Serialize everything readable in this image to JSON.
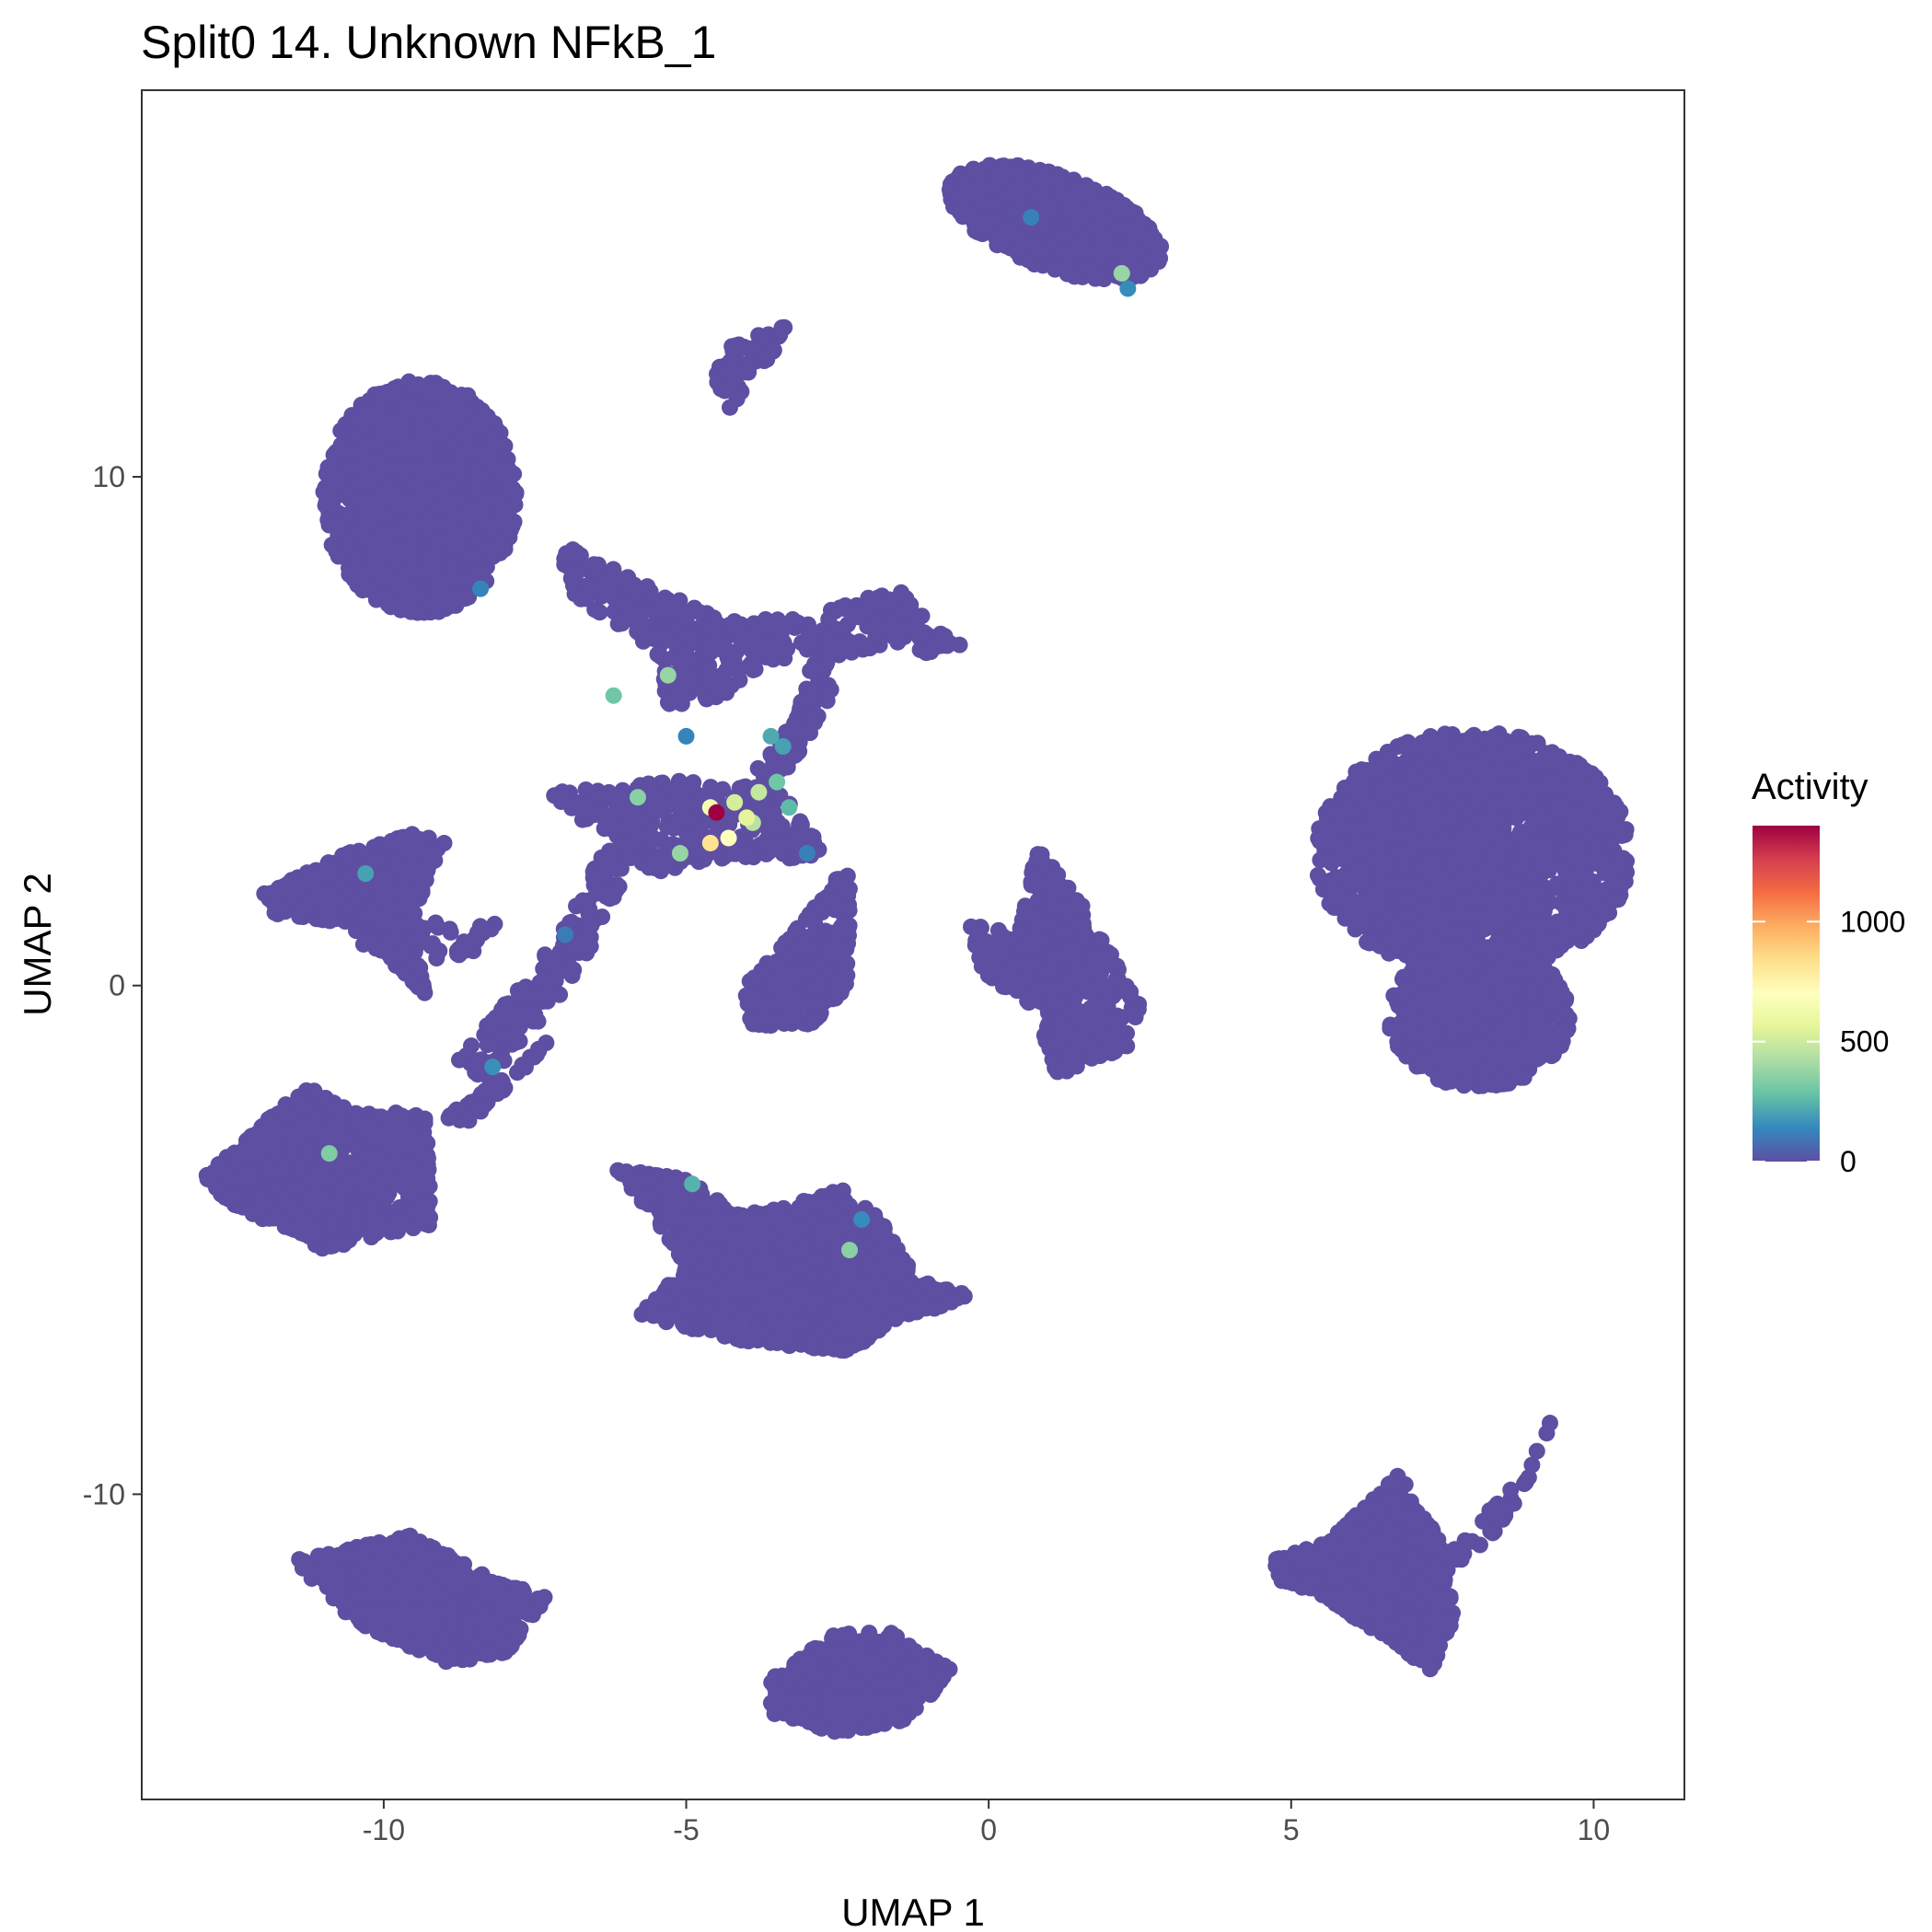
{
  "chart_data": {
    "type": "scatter",
    "title": "Split0 14. Unknown NFkB_1",
    "xlabel": "UMAP 1",
    "ylabel": "UMAP 2",
    "xlim": [
      -14,
      11.5
    ],
    "ylim": [
      -16,
      17.6
    ],
    "x_ticks": [
      -10,
      -5,
      0,
      5,
      10
    ],
    "x_tick_labels": [
      "-10",
      "-5",
      "0",
      "5",
      "10"
    ],
    "y_ticks": [
      -10,
      0,
      10
    ],
    "y_tick_labels": [
      "-10",
      "0",
      "10"
    ],
    "grid": false,
    "legend": {
      "title": "Activity",
      "position": "right",
      "min": 0,
      "max": 1400,
      "ticks": [
        0,
        500,
        1000
      ],
      "tick_labels": [
        "0",
        "500",
        "1000"
      ],
      "palette": [
        "#5E4FA2",
        "#3288BD",
        "#66C2A5",
        "#ABDDA4",
        "#E6F598",
        "#FFFFBF",
        "#FEE08B",
        "#FDAE61",
        "#F46D43",
        "#D53E4F",
        "#9E0142"
      ]
    },
    "point_color": "#5E4FA2",
    "clusters": [
      {
        "shape": "ellipse",
        "cx": -9.4,
        "cy": 9.6,
        "rx": 1.6,
        "ry": 2.3,
        "angle": 0,
        "n": 1200
      },
      {
        "shape": "ellipse",
        "cx": 1.1,
        "cy": 15.0,
        "rx": 1.9,
        "ry": 0.9,
        "angle": -25,
        "n": 700
      },
      {
        "shape": "poly",
        "pts": [
          [
            -4.7,
            12.4
          ],
          [
            -3.2,
            13.1
          ],
          [
            -3.8,
            12.0
          ],
          [
            -4.3,
            11.3
          ]
        ],
        "n": 60
      },
      {
        "shape": "poly",
        "pts": [
          [
            -12.0,
            1.8
          ],
          [
            -10.6,
            2.6
          ],
          [
            -9.5,
            3.0
          ],
          [
            -9.0,
            2.8
          ],
          [
            -9.6,
            1.2
          ],
          [
            -9.3,
            -0.2
          ],
          [
            -10.5,
            1.2
          ],
          [
            -11.8,
            1.4
          ]
        ],
        "n": 500
      },
      {
        "shape": "poly",
        "pts": [
          [
            -13.0,
            -3.8
          ],
          [
            -11.6,
            -2.3
          ],
          [
            -11.2,
            -2.0
          ],
          [
            -10.5,
            -2.5
          ],
          [
            -9.3,
            -2.5
          ],
          [
            -9.2,
            -4.7
          ],
          [
            -11.0,
            -5.2
          ],
          [
            -12.5,
            -4.3
          ]
        ],
        "n": 800
      },
      {
        "shape": "poly",
        "pts": [
          [
            -11.5,
            -11.3
          ],
          [
            -9.5,
            -10.8
          ],
          [
            -8.5,
            -11.5
          ],
          [
            -7.3,
            -12.0
          ],
          [
            -8.0,
            -13.2
          ],
          [
            -9.0,
            -13.3
          ],
          [
            -10.5,
            -12.5
          ]
        ],
        "n": 700
      },
      {
        "shape": "poly",
        "pts": [
          [
            -6.2,
            -3.6
          ],
          [
            -5.0,
            -3.8
          ],
          [
            -4.0,
            -4.5
          ],
          [
            -3.0,
            -4.2
          ],
          [
            -2.4,
            -4.0
          ],
          [
            -1.8,
            -4.5
          ],
          [
            -1.2,
            -5.8
          ],
          [
            -0.2,
            -6.1
          ],
          [
            -1.6,
            -6.6
          ],
          [
            -2.3,
            -7.2
          ],
          [
            -4.0,
            -7.0
          ],
          [
            -5.8,
            -6.5
          ],
          [
            -5.0,
            -5.5
          ],
          [
            -5.6,
            -4.5
          ]
        ],
        "n": 1400
      },
      {
        "shape": "poly",
        "pts": [
          [
            -3.6,
            -13.6
          ],
          [
            -2.5,
            -12.7
          ],
          [
            -1.6,
            -12.7
          ],
          [
            -0.6,
            -13.4
          ],
          [
            -1.2,
            -14.4
          ],
          [
            -2.5,
            -14.7
          ],
          [
            -3.6,
            -14.3
          ]
        ],
        "n": 500
      },
      {
        "shape": "poly",
        "pts": [
          [
            -4.1,
            -0.1
          ],
          [
            -3.3,
            1.0
          ],
          [
            -2.6,
            2.0
          ],
          [
            -2.3,
            2.5
          ],
          [
            -2.3,
            0.0
          ],
          [
            -2.9,
            -0.8
          ],
          [
            -3.9,
            -0.8
          ]
        ],
        "n": 280
      },
      {
        "shape": "poly",
        "pts": [
          [
            -0.3,
            1.2
          ],
          [
            0.5,
            1.0
          ],
          [
            0.8,
            2.7
          ],
          [
            1.6,
            1.5
          ],
          [
            2.5,
            -0.4
          ],
          [
            2.3,
            -1.2
          ],
          [
            1.1,
            -1.8
          ],
          [
            0.8,
            -0.5
          ],
          [
            -0.2,
            0.3
          ]
        ],
        "n": 500
      },
      {
        "shape": "ellipse",
        "cx": 8.0,
        "cy": 2.6,
        "rx": 2.6,
        "ry": 2.4,
        "angle": 0,
        "n": 1800
      },
      {
        "shape": "ellipse",
        "cx": 8.1,
        "cy": -0.6,
        "rx": 1.5,
        "ry": 1.4,
        "angle": 0,
        "n": 700
      },
      {
        "shape": "poly",
        "pts": [
          [
            4.7,
            -11.3
          ],
          [
            5.6,
            -10.9
          ],
          [
            6.5,
            -9.9
          ],
          [
            6.8,
            -9.6
          ],
          [
            7.5,
            -11.0
          ],
          [
            7.7,
            -12.4
          ],
          [
            7.3,
            -13.5
          ],
          [
            6.8,
            -13.0
          ],
          [
            5.5,
            -12.0
          ],
          [
            4.8,
            -11.7
          ]
        ],
        "n": 800
      },
      {
        "shape": "poly",
        "pts": [
          [
            -7.1,
            8.7
          ],
          [
            -5.5,
            7.8
          ],
          [
            -4.4,
            7.2
          ],
          [
            -3.0,
            7.2
          ],
          [
            -1.8,
            7.8
          ],
          [
            -1.0,
            6.9
          ],
          [
            -2.2,
            6.5
          ],
          [
            -3.6,
            6.4
          ],
          [
            -4.5,
            5.6
          ],
          [
            -5.3,
            5.5
          ],
          [
            -5.5,
            6.6
          ],
          [
            -6.9,
            7.6
          ]
        ],
        "n": 380
      },
      {
        "shape": "poly",
        "pts": [
          [
            -7.3,
            3.8
          ],
          [
            -5.5,
            4.1
          ],
          [
            -4.3,
            3.9
          ],
          [
            -3.5,
            4.1
          ],
          [
            -3.0,
            3.0
          ],
          [
            -2.5,
            2.6
          ],
          [
            -3.2,
            2.5
          ],
          [
            -4.5,
            2.5
          ],
          [
            -5.6,
            2.2
          ],
          [
            -6.8,
            3.3
          ]
        ],
        "n": 320
      },
      {
        "shape": "poly",
        "pts": [
          [
            -8.8,
            -1.5
          ],
          [
            -7.2,
            0.8
          ],
          [
            -6.2,
            3.0
          ],
          [
            -5.6,
            3.8
          ],
          [
            -5.8,
            2.7
          ],
          [
            -6.8,
            0.2
          ],
          [
            -8.3,
            -1.9
          ]
        ],
        "n": 200
      },
      {
        "shape": "poly",
        "pts": [
          [
            -3.9,
            4.2
          ],
          [
            -3.2,
            5.2
          ],
          [
            -2.9,
            6.5
          ],
          [
            -2.4,
            6.2
          ],
          [
            -3.0,
            4.8
          ],
          [
            -3.5,
            3.9
          ]
        ],
        "n": 80
      },
      {
        "shape": "poly",
        "pts": [
          [
            -10.4,
            1.6
          ],
          [
            -8.8,
            1.3
          ],
          [
            -8.0,
            1.2
          ],
          [
            -8.4,
            0.7
          ],
          [
            -9.4,
            0.3
          ],
          [
            -10.5,
            0.8
          ]
        ],
        "n": 60
      },
      {
        "shape": "poly",
        "pts": [
          [
            -9.0,
            -2.6
          ],
          [
            -8.0,
            -1.8
          ],
          [
            -7.2,
            -1.0
          ],
          [
            -7.6,
            -1.6
          ],
          [
            -8.6,
            -2.7
          ]
        ],
        "n": 50
      },
      {
        "shape": "poly",
        "pts": [
          [
            7.6,
            -11.6
          ],
          [
            8.4,
            -10.8
          ],
          [
            9.1,
            -9.5
          ],
          [
            9.3,
            -8.5
          ],
          [
            8.7,
            -9.7
          ],
          [
            8.0,
            -10.7
          ],
          [
            7.5,
            -11.2
          ]
        ],
        "n": 40
      },
      {
        "shape": "poly",
        "pts": [
          [
            -1.5,
            7.9
          ],
          [
            -1.0,
            7.1
          ],
          [
            -0.3,
            6.6
          ],
          [
            -1.1,
            6.5
          ],
          [
            -1.9,
            7.0
          ]
        ],
        "n": 50
      }
    ],
    "highlighted_points": [
      {
        "x": -4.5,
        "y": 3.4,
        "value": 1400
      },
      {
        "x": -4.6,
        "y": 2.8,
        "value": 820
      },
      {
        "x": -4.3,
        "y": 2.9,
        "value": 700
      },
      {
        "x": -4.6,
        "y": 3.5,
        "value": 650
      },
      {
        "x": -4.0,
        "y": 3.3,
        "value": 560
      },
      {
        "x": -4.2,
        "y": 3.6,
        "value": 520
      },
      {
        "x": -3.8,
        "y": 3.8,
        "value": 480
      },
      {
        "x": -3.9,
        "y": 3.2,
        "value": 450
      },
      {
        "x": -5.1,
        "y": 2.6,
        "value": 380
      },
      {
        "x": -5.8,
        "y": 3.7,
        "value": 350
      },
      {
        "x": -5.3,
        "y": 6.1,
        "value": 380
      },
      {
        "x": -6.2,
        "y": 5.7,
        "value": 300
      },
      {
        "x": -3.6,
        "y": 4.9,
        "value": 220
      },
      {
        "x": -3.4,
        "y": 4.7,
        "value": 200
      },
      {
        "x": -3.3,
        "y": 3.5,
        "value": 260
      },
      {
        "x": -3.5,
        "y": 4.0,
        "value": 300
      },
      {
        "x": 2.2,
        "y": 14.0,
        "value": 380
      },
      {
        "x": 2.3,
        "y": 13.7,
        "value": 150
      },
      {
        "x": 0.7,
        "y": 15.1,
        "value": 120
      },
      {
        "x": -10.9,
        "y": -3.3,
        "value": 330
      },
      {
        "x": -10.3,
        "y": 2.2,
        "value": 200
      },
      {
        "x": -8.2,
        "y": -1.6,
        "value": 160
      },
      {
        "x": -4.9,
        "y": -3.9,
        "value": 240
      },
      {
        "x": -2.3,
        "y": -5.2,
        "value": 350
      },
      {
        "x": -2.1,
        "y": -4.6,
        "value": 150
      },
      {
        "x": -8.4,
        "y": 7.8,
        "value": 130
      },
      {
        "x": -7.0,
        "y": 1.0,
        "value": 110
      },
      {
        "x": -5.0,
        "y": 4.9,
        "value": 130
      },
      {
        "x": -3.0,
        "y": 2.6,
        "value": 120
      }
    ]
  }
}
